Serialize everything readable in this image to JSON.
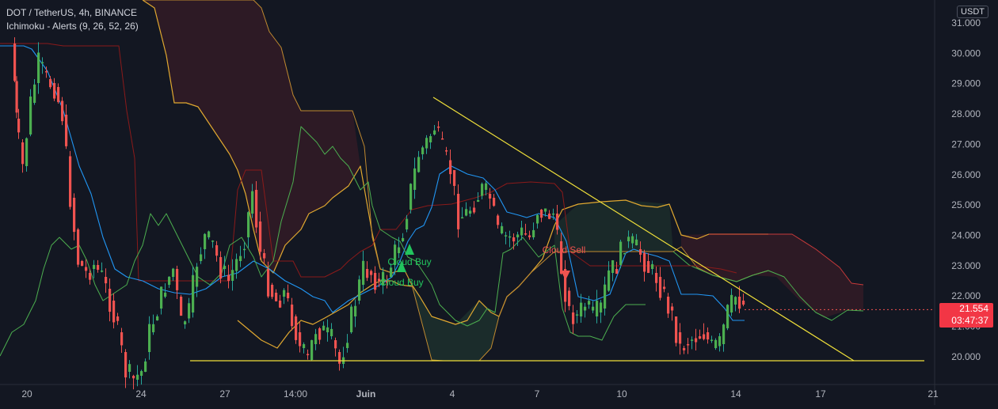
{
  "header": {
    "symbol_line": "DOT / TetherUS, 4h, BINANCE",
    "indicator_line": "Ichimoku - Alerts (9, 26, 52, 26)"
  },
  "currency_badge": "USDT",
  "last_price": {
    "value": "21.554",
    "countdown": "03:47:37"
  },
  "colors": {
    "background": "#131722",
    "candle_up": "#26a69a",
    "candle_up_alt": "#4caf50",
    "candle_down": "#ef5350",
    "tenkan": "#2196f3",
    "kijun": "#8b1a1a",
    "chikou": "#4caf50",
    "senkou": "#f7c948",
    "trendline": "#f0e03a",
    "buy_signal": "#22c55e",
    "sell_signal": "#ef5350"
  },
  "chart_data": {
    "type": "candlestick",
    "title": "DOT / TetherUS, 4h, BINANCE",
    "y_axis": {
      "ticks": [
        "31.000",
        "30.000",
        "29.000",
        "28.000",
        "27.000",
        "26.000",
        "25.000",
        "24.000",
        "23.000",
        "22.000",
        "21.000",
        "20.000"
      ],
      "range": [
        19.2,
        31.6
      ]
    },
    "x_axis": {
      "ticks": [
        "20",
        "24",
        "27",
        "14:00",
        "Juin",
        "4",
        "7",
        "10",
        "14",
        "17",
        "21"
      ]
    },
    "signals": [
      {
        "label": "Cloud Buy",
        "type": "buy",
        "price": 23.8
      },
      {
        "label": "Cloud Buy",
        "type": "buy",
        "price": 23.1
      },
      {
        "label": "Cloud Sell",
        "type": "sell",
        "price": 22.7
      }
    ],
    "trendlines": [
      {
        "name": "descending",
        "from": {
          "x_index": 0.469,
          "price": 28.5
        },
        "to": {
          "x_index": 0.925,
          "price": 19.85
        }
      },
      {
        "name": "support",
        "from": {
          "x_index": 0.19,
          "price": 19.85
        },
        "to": {
          "x_index": 1.0,
          "price": 19.85
        }
      }
    ],
    "last_price": 21.554
  }
}
